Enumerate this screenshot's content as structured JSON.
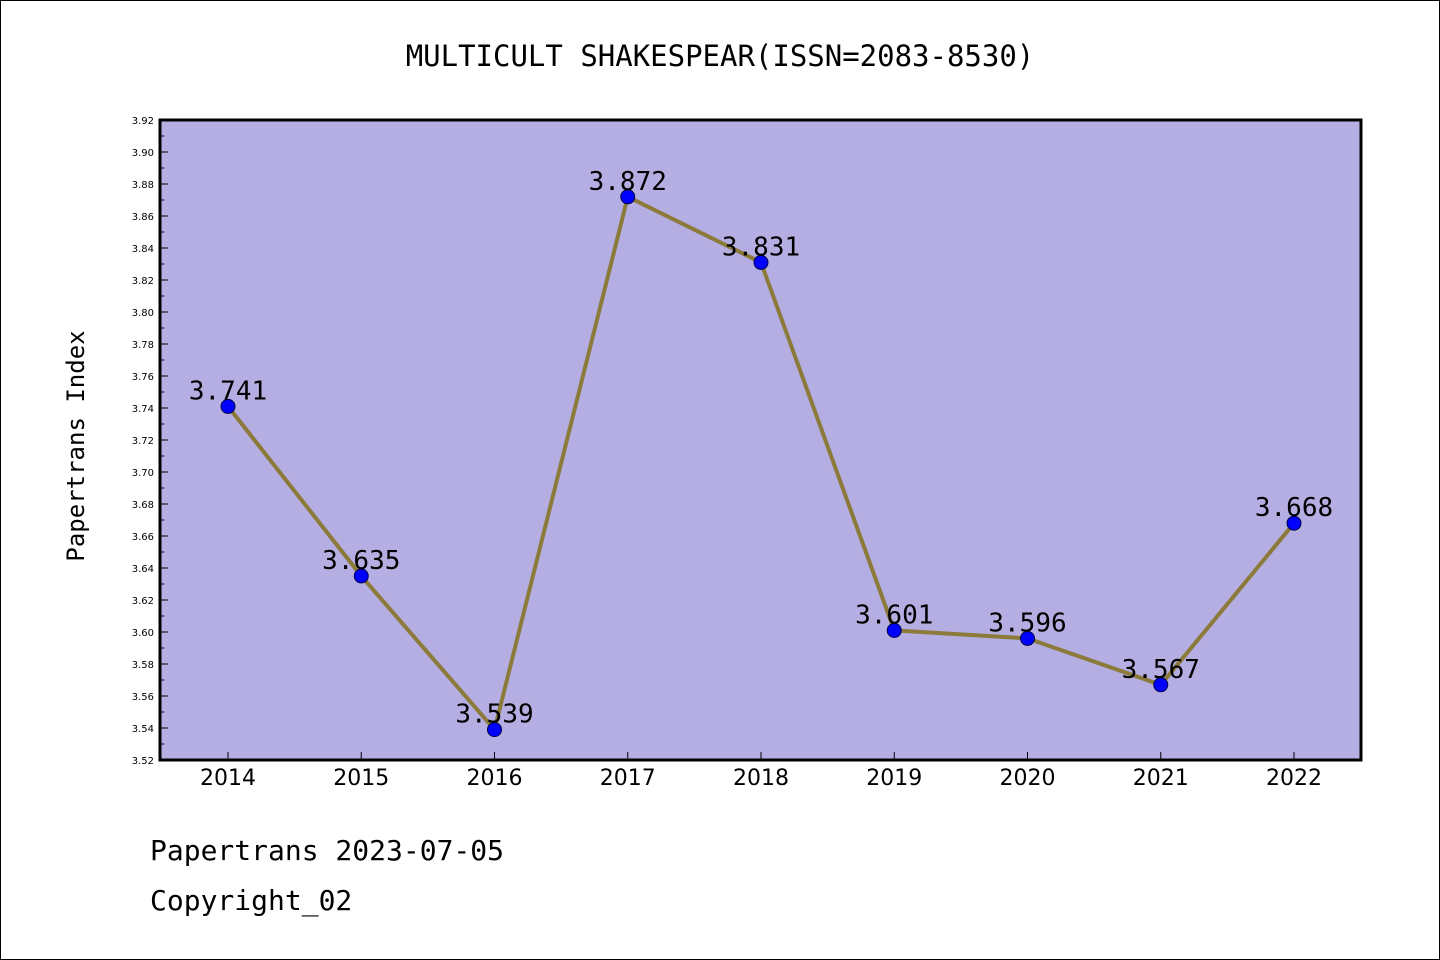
{
  "footer": {
    "date_line": "Papertrans 2023-07-05",
    "copyright_line": "Copyright_02"
  },
  "colors": {
    "plot_background": "#b5aee2",
    "line": "#8b7a3a",
    "marker": "#0000ff",
    "frame": "#000000"
  },
  "chart_data": {
    "type": "line",
    "title": "MULTICULT SHAKESPEAR(ISSN=2083-8530)",
    "xlabel": "",
    "ylabel": "Papertrans Index",
    "categories": [
      "2014",
      "2015",
      "2016",
      "2017",
      "2018",
      "2019",
      "2020",
      "2021",
      "2022"
    ],
    "values": [
      3.741,
      3.635,
      3.539,
      3.872,
      3.831,
      3.601,
      3.596,
      3.567,
      3.668
    ],
    "data_labels": [
      "3.741",
      "3.635",
      "3.539",
      "3.872",
      "3.831",
      "3.601",
      "3.596",
      "3.567",
      "3.668"
    ],
    "ylim": [
      3.52,
      3.92
    ],
    "yticks": [
      "3.52",
      "3.54",
      "3.56",
      "3.58",
      "3.60",
      "3.62",
      "3.64",
      "3.66",
      "3.68",
      "3.70",
      "3.72",
      "3.74",
      "3.76",
      "3.78",
      "3.80",
      "3.82",
      "3.84",
      "3.86",
      "3.88",
      "3.90",
      "3.92"
    ],
    "grid": false,
    "legend": "none"
  }
}
